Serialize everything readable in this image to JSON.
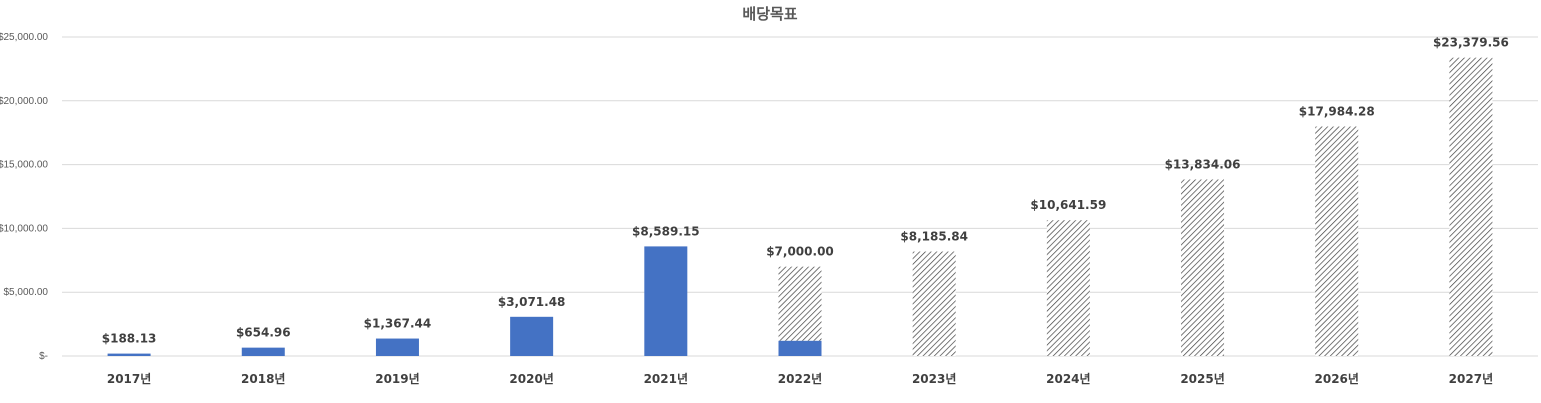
{
  "chart_data": {
    "type": "bar",
    "title": "배당목표",
    "xlabel": "",
    "ylabel": "",
    "ylim": [
      0,
      25000
    ],
    "yticks": [
      0,
      5000,
      10000,
      15000,
      20000,
      25000
    ],
    "ytick_labels": [
      "$-",
      "$5,000.00",
      "$10,000.00",
      "$15,000.00",
      "$20,000.00",
      "$25,000.00"
    ],
    "grid": true,
    "legend": "none",
    "categories": [
      "2017년",
      "2018년",
      "2019년",
      "2020년",
      "2021년",
      "2022년",
      "2023년",
      "2024년",
      "2025년",
      "2026년",
      "2027년"
    ],
    "series": [
      {
        "values": [
          188.13,
          654.96,
          1367.44,
          3071.48,
          8589.15,
          1200,
          0,
          0,
          0,
          0,
          0
        ],
        "color": "#4472c4",
        "style": "solid"
      },
      {
        "values": [
          0,
          0,
          0,
          0,
          0,
          7000.0,
          8185.84,
          10641.59,
          13834.06,
          17984.28,
          23379.56
        ],
        "color": "#404040",
        "style": "hatched"
      }
    ],
    "data_labels": [
      "$188.13",
      "$654.96",
      "$1,367.44",
      "$3,071.48",
      "$8,589.15",
      "$7,000.00",
      "$8,185.84",
      "$10,641.59",
      "$13,834.06",
      "$17,984.28",
      "$23,379.56"
    ]
  }
}
